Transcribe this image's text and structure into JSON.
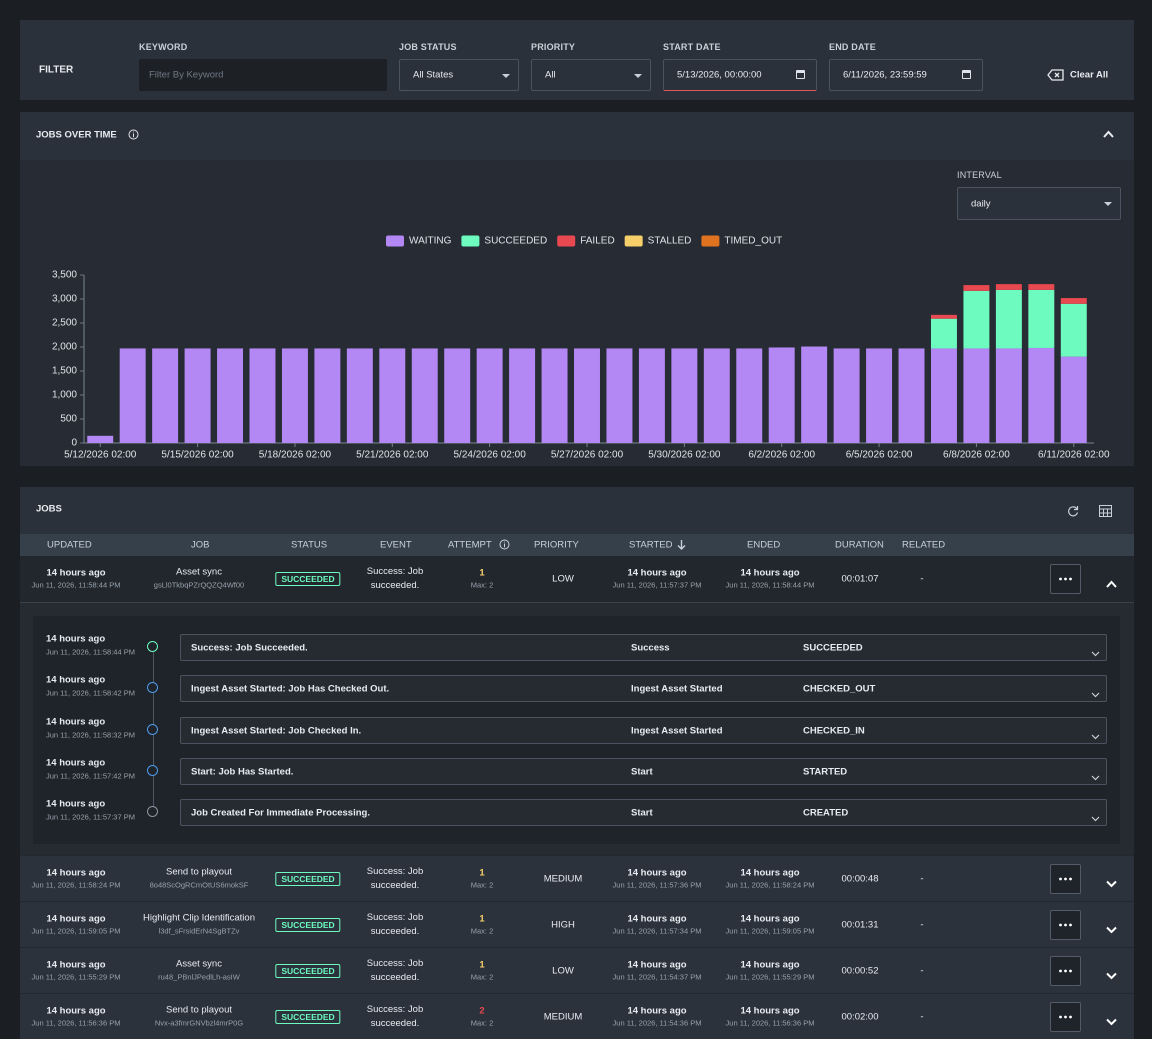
{
  "filter": {
    "title": "FILTER",
    "keyword_label": "KEYWORD",
    "keyword_placeholder": "Filter By Keyword",
    "job_status_label": "JOB STATUS",
    "job_status": "All States",
    "priority_label": "PRIORITY",
    "priority": "All",
    "start_date_label": "START DATE",
    "start_date": "5/13/2026, 00:00:00",
    "end_date_label": "END DATE",
    "end_date": "6/11/2026, 23:59:59",
    "clear": "Clear All"
  },
  "jobs_over_time": {
    "title": "JOBS OVER TIME",
    "interval_label": "INTERVAL",
    "interval": "daily"
  },
  "chart_data": {
    "type": "bar",
    "stacked": true,
    "categories": [
      "5/12/2026 02:00",
      null,
      null,
      "5/15/2026 02:00",
      null,
      null,
      "5/18/2026 02:00",
      null,
      null,
      "5/21/2026 02:00",
      null,
      null,
      "5/24/2026 02:00",
      null,
      null,
      "5/27/2026 02:00",
      null,
      null,
      "5/30/2026 02:00",
      null,
      null,
      "6/2/2026 02:00",
      null,
      null,
      "6/5/2026 02:00",
      null,
      null,
      "6/8/2026 02:00",
      null,
      null,
      "6/11/2026 02:00"
    ],
    "series": [
      {
        "name": "WAITING",
        "color": "#b488f4",
        "values": [
          150,
          1970,
          1970,
          1970,
          1970,
          1970,
          1970,
          1970,
          1970,
          1970,
          1970,
          1970,
          1970,
          1970,
          1970,
          1970,
          1970,
          1970,
          1970,
          1970,
          1970,
          1990,
          2010,
          1970,
          1970,
          1970,
          1970,
          1970,
          1970,
          1980,
          1800
        ]
      },
      {
        "name": "SUCCEEDED",
        "color": "#6dfbbf",
        "values": [
          0,
          0,
          0,
          0,
          0,
          0,
          0,
          0,
          0,
          0,
          0,
          0,
          0,
          0,
          0,
          0,
          0,
          0,
          0,
          0,
          0,
          0,
          0,
          0,
          0,
          0,
          620,
          1200,
          1220,
          1210,
          1100
        ]
      },
      {
        "name": "FAILED",
        "color": "#e8484f",
        "values": [
          0,
          0,
          0,
          0,
          0,
          0,
          0,
          0,
          0,
          0,
          0,
          0,
          0,
          0,
          0,
          0,
          0,
          0,
          0,
          0,
          0,
          0,
          0,
          0,
          0,
          0,
          80,
          120,
          120,
          120,
          120
        ]
      },
      {
        "name": "STALLED",
        "color": "#f7cf6a",
        "values": [
          0,
          0,
          0,
          0,
          0,
          0,
          0,
          0,
          0,
          0,
          0,
          0,
          0,
          0,
          0,
          0,
          0,
          0,
          0,
          0,
          0,
          0,
          0,
          0,
          0,
          0,
          0,
          0,
          0,
          0,
          0
        ]
      },
      {
        "name": "TIMED_OUT",
        "color": "#e0731f",
        "values": [
          0,
          0,
          0,
          0,
          0,
          0,
          0,
          0,
          0,
          0,
          0,
          0,
          0,
          0,
          0,
          0,
          0,
          0,
          0,
          0,
          0,
          0,
          0,
          0,
          0,
          0,
          0,
          0,
          0,
          0,
          0
        ]
      }
    ],
    "ylim": [
      0,
      3500
    ],
    "yticks": [
      0,
      500,
      {
        "value": 1000,
        "label": "1,000"
      },
      {
        "value": 1500,
        "label": "1,500"
      },
      {
        "value": 2000,
        "label": "2,000"
      },
      {
        "value": 2500,
        "label": "2,500"
      },
      {
        "value": 3000,
        "label": "3,000"
      },
      {
        "value": 3500,
        "label": "3,500"
      }
    ],
    "grid": false,
    "legend": "top"
  },
  "jobs": {
    "title": "JOBS",
    "columns": [
      "UPDATED",
      "JOB",
      "STATUS",
      "EVENT",
      "ATTEMPT",
      "PRIORITY",
      "STARTED",
      "ENDED",
      "DURATION",
      "RELATED"
    ],
    "rows": [
      {
        "updated": "14 hours ago",
        "updated_at": "Jun 11, 2026, 11:58:44 PM",
        "job": "Asset sync",
        "job_id": "gsLl0TkbqPZrQQZQ4Wf00",
        "status": "SUCCEEDED",
        "event": "Success: Job succeeded.",
        "attempt": 1,
        "max": "Max: 2",
        "priority": "LOW",
        "started": "14 hours ago",
        "started_at": "Jun 11, 2026, 11:57:37 PM",
        "ended": "14 hours ago",
        "ended_at": "Jun 11, 2026, 11:58:44 PM",
        "duration": "00:01:07",
        "related": "-",
        "expanded": true
      },
      {
        "updated": "14 hours ago",
        "updated_at": "Jun 11, 2026, 11:58:24 PM",
        "job": "Send to playout",
        "job_id": "8o48ScOgRCmOtUS6mokSF",
        "status": "SUCCEEDED",
        "event": "Success: Job succeeded.",
        "attempt": 1,
        "max": "Max: 2",
        "priority": "MEDIUM",
        "started": "14 hours ago",
        "started_at": "Jun 11, 2026, 11:57:36 PM",
        "ended": "14 hours ago",
        "ended_at": "Jun 11, 2026, 11:58:24 PM",
        "duration": "00:00:48",
        "related": "-",
        "expanded": false
      },
      {
        "updated": "14 hours ago",
        "updated_at": "Jun 11, 2026, 11:59:05 PM",
        "job": "Highlight Clip Identification",
        "job_id": "l3df_sFrsidErN4SgBTZv",
        "status": "SUCCEEDED",
        "event": "Success: Job succeeded.",
        "attempt": 1,
        "max": "Max: 2",
        "priority": "HIGH",
        "started": "14 hours ago",
        "started_at": "Jun 11, 2026, 11:57:34 PM",
        "ended": "14 hours ago",
        "ended_at": "Jun 11, 2026, 11:59:05 PM",
        "duration": "00:01:31",
        "related": "-",
        "expanded": false
      },
      {
        "updated": "14 hours ago",
        "updated_at": "Jun 11, 2026, 11:55:29 PM",
        "job": "Asset sync",
        "job_id": "ru48_PBnlJPedlLh-asIW",
        "status": "SUCCEEDED",
        "event": "Success: Job succeeded.",
        "attempt": 1,
        "max": "Max: 2",
        "priority": "LOW",
        "started": "14 hours ago",
        "started_at": "Jun 11, 2026, 11:54:37 PM",
        "ended": "14 hours ago",
        "ended_at": "Jun 11, 2026, 11:55:29 PM",
        "duration": "00:00:52",
        "related": "-",
        "expanded": false
      },
      {
        "updated": "14 hours ago",
        "updated_at": "Jun 11, 2026, 11:56:36 PM",
        "job": "Send to playout",
        "job_id": "Nvx-a3fmrGNVbzl4mrP0G",
        "status": "SUCCEEDED",
        "event": "Success: Job succeeded.",
        "attempt": 2,
        "max": "Max: 2",
        "priority": "MEDIUM",
        "started": "14 hours ago",
        "started_at": "Jun 11, 2026, 11:54:36 PM",
        "ended": "14 hours ago",
        "ended_at": "Jun 11, 2026, 11:56:36 PM",
        "duration": "00:02:00",
        "related": "-",
        "expanded": false
      }
    ],
    "timeline": [
      {
        "ago": "14 hours ago",
        "at": "Jun 11, 2026, 11:58:44 PM",
        "message": "Success: Job Succeeded.",
        "event": "Success",
        "state": "SUCCEEDED"
      },
      {
        "ago": "14 hours ago",
        "at": "Jun 11, 2026, 11:58:42 PM",
        "message": "Ingest Asset Started: Job Has Checked Out.",
        "event": "Ingest Asset Started",
        "state": "CHECKED_OUT"
      },
      {
        "ago": "14 hours ago",
        "at": "Jun 11, 2026, 11:58:32 PM",
        "message": "Ingest Asset Started: Job Checked In.",
        "event": "Ingest Asset Started",
        "state": "CHECKED_IN"
      },
      {
        "ago": "14 hours ago",
        "at": "Jun 11, 2026, 11:57:42 PM",
        "message": "Start: Job Has Started.",
        "event": "Start",
        "state": "STARTED"
      },
      {
        "ago": "14 hours ago",
        "at": "Jun 11, 2026, 11:57:37 PM",
        "message": "Job Created For Immediate Processing.",
        "event": "Start",
        "state": "CREATED"
      }
    ]
  }
}
